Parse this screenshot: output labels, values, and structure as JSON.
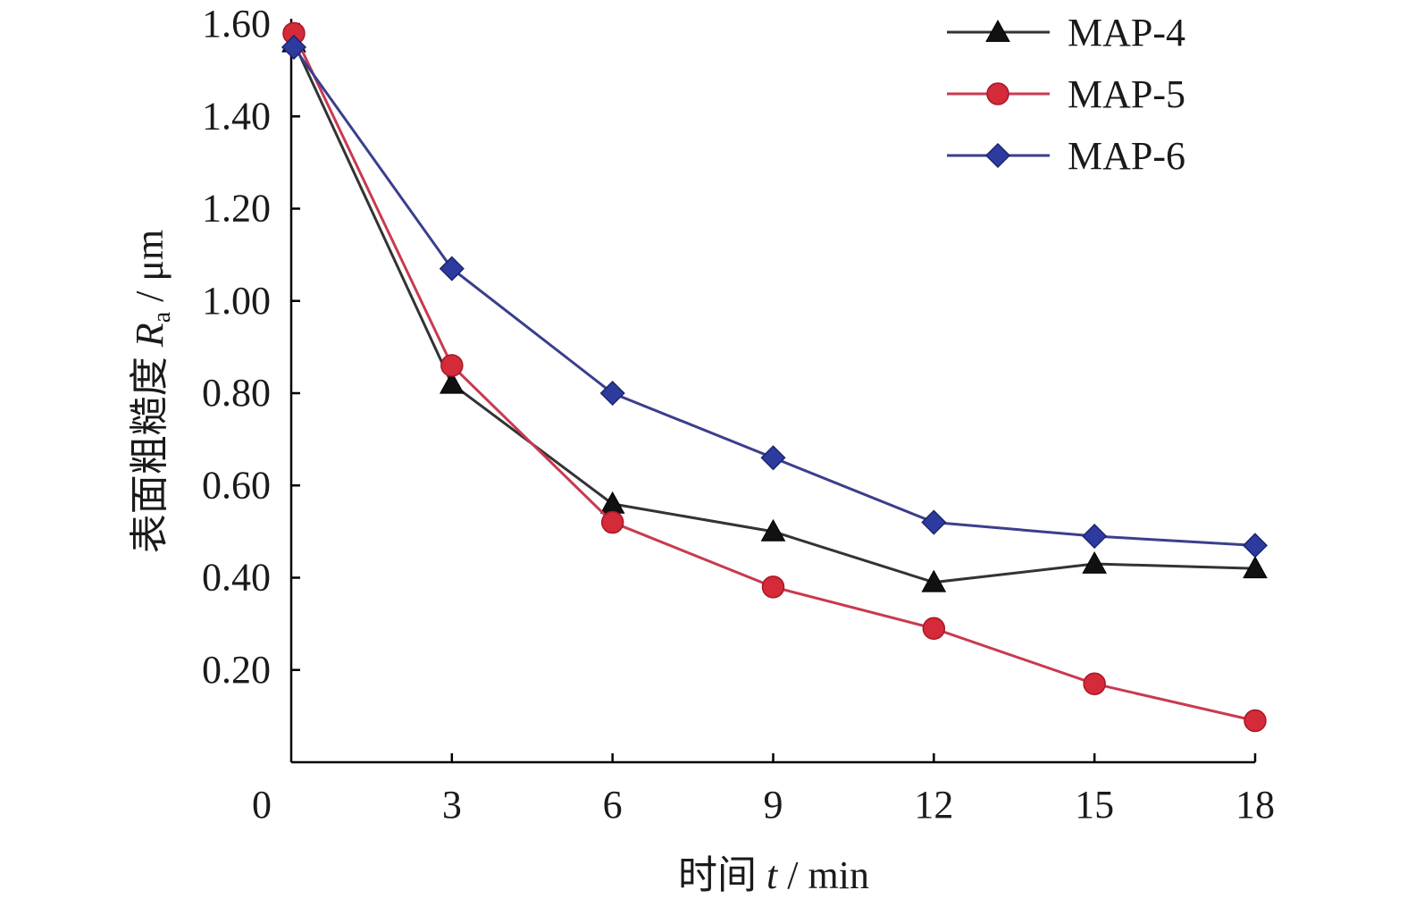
{
  "chart_data": {
    "type": "line",
    "title": "",
    "xlabel": "时间 t / min",
    "xlabel_parts": {
      "prefix": "时间 ",
      "var": "t",
      "suffix": " / min"
    },
    "ylabel": "表面粗糙度 Ra / μm",
    "ylabel_parts": {
      "prefix": "表面粗糙度 ",
      "var": "R",
      "sub": "a",
      "suffix": " / μm"
    },
    "xlim": [
      0,
      18
    ],
    "ylim": [
      0,
      1.6
    ],
    "x_ticks": [
      0,
      3,
      6,
      9,
      12,
      15,
      18
    ],
    "x_tick_labels": [
      "0",
      "3",
      "6",
      "9",
      "12",
      "15",
      "18"
    ],
    "y_ticks": [
      0.2,
      0.4,
      0.6,
      0.8,
      1.0,
      1.2,
      1.4,
      1.6
    ],
    "y_tick_labels": [
      "0.20",
      "0.40",
      "0.60",
      "0.80",
      "1.00",
      "1.20",
      "1.40",
      "1.60"
    ],
    "grid": false,
    "legend_position": "top-right",
    "x": [
      0,
      3,
      6,
      9,
      12,
      15,
      18
    ],
    "series": [
      {
        "name": "MAP-4",
        "values": [
          1.56,
          0.82,
          0.56,
          0.5,
          0.39,
          0.43,
          0.42
        ],
        "marker": "triangle",
        "color": "#111111",
        "line_color": "#333333"
      },
      {
        "name": "MAP-5",
        "values": [
          1.58,
          0.86,
          0.52,
          0.38,
          0.29,
          0.17,
          0.09
        ],
        "marker": "circle",
        "color": "#d42a3a",
        "line_color": "#c83a50"
      },
      {
        "name": "MAP-6",
        "values": [
          1.55,
          1.07,
          0.8,
          0.66,
          0.52,
          0.49,
          0.47
        ],
        "marker": "diamond",
        "color": "#2e3b9e",
        "line_color": "#3a3f8c"
      }
    ]
  }
}
